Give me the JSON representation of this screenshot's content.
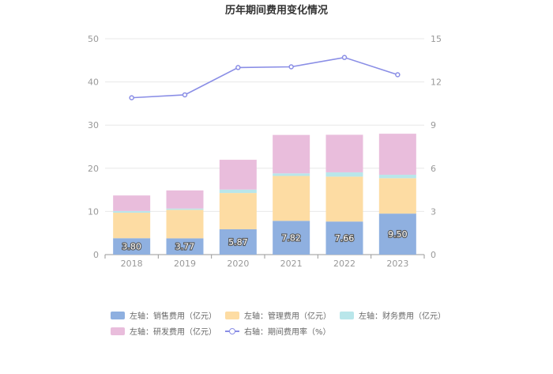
{
  "chart_data": {
    "type": "bar",
    "stacked": true,
    "title": "历年期间费用变化情况",
    "categories": [
      "2018",
      "2019",
      "2020",
      "2021",
      "2022",
      "2023"
    ],
    "y_left": {
      "min": 0,
      "max": 50,
      "ticks": [
        "0",
        "10",
        "20",
        "30",
        "40",
        "50"
      ]
    },
    "y_right": {
      "min": 0,
      "max": 15,
      "ticks": [
        "0",
        "3",
        "6",
        "9",
        "12",
        "15"
      ]
    },
    "grid": true,
    "legend_position": "bottom",
    "series": [
      {
        "name": "左轴：销售费用（亿元）",
        "kind": "bar",
        "axis": "left",
        "color": "#8fb0e0",
        "values": [
          3.8,
          3.77,
          5.87,
          7.82,
          7.66,
          9.5
        ],
        "labels": [
          "3.80",
          "3.77",
          "5.87",
          "7.82",
          "7.66",
          "9.50"
        ]
      },
      {
        "name": "左轴：管理费用（亿元）",
        "kind": "bar",
        "axis": "left",
        "color": "#fddca3",
        "values": [
          5.9,
          6.6,
          8.4,
          10.4,
          10.4,
          8.2
        ]
      },
      {
        "name": "左轴：财务费用（亿元）",
        "kind": "bar",
        "axis": "left",
        "color": "#b9e6ea",
        "values": [
          0.4,
          0.3,
          0.8,
          0.6,
          1.0,
          0.8
        ]
      },
      {
        "name": "左轴：研发费用（亿元）",
        "kind": "bar",
        "axis": "left",
        "color": "#e9bddc",
        "values": [
          3.6,
          4.2,
          6.9,
          8.9,
          8.7,
          9.5
        ]
      },
      {
        "name": "右轴：期间费用率（%）",
        "kind": "line",
        "axis": "right",
        "color": "#8a8ee6",
        "values": [
          10.9,
          11.1,
          13.0,
          13.05,
          13.7,
          12.5
        ]
      }
    ]
  }
}
